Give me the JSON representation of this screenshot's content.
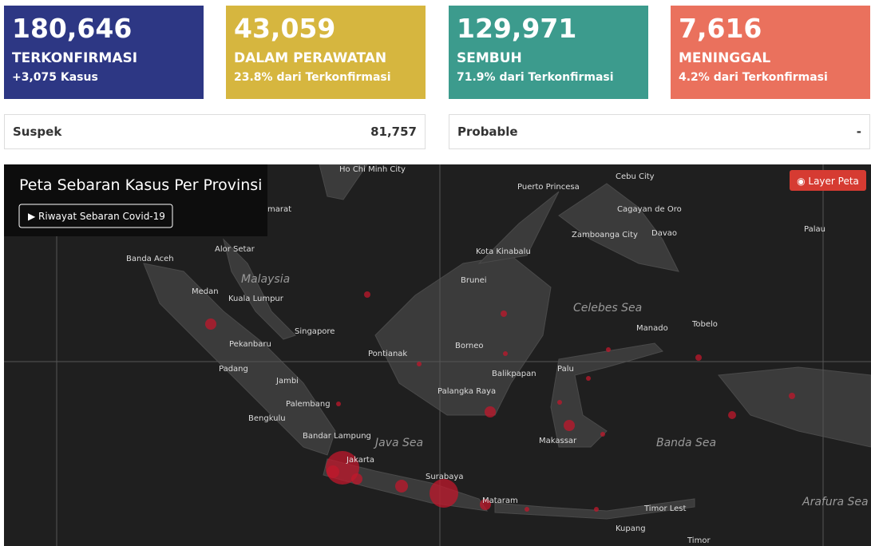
{
  "cards": [
    {
      "value": "180,646",
      "label": "TERKONFIRMASI",
      "sub": "+3,075 Kasus"
    },
    {
      "value": "43,059",
      "label": "DALAM PERAWATAN",
      "sub": "23.8% dari Terkonfirmasi"
    },
    {
      "value": "129,971",
      "label": "SEMBUH",
      "sub": "71.9% dari Terkonfirmasi"
    },
    {
      "value": "7,616",
      "label": "MENINGGAL",
      "sub": "4.2% dari Terkonfirmasi"
    }
  ],
  "rows": [
    {
      "label": "Suspek",
      "value": "81,757"
    },
    {
      "label": "Probable",
      "value": "-"
    }
  ],
  "map": {
    "title": "Peta Sebaran Kasus Per Provinsi",
    "button": "▶ Riwayat Sebaran Covid-19",
    "layer": "◉ Layer Peta",
    "labels": [
      "Ho Chi Minh City",
      "Nakhon Si Thammarat",
      "Banda Aceh",
      "Alor Setar",
      "Malaysia",
      "Medan",
      "Kuala Lumpur",
      "Singapore",
      "Pekanbaru",
      "Padang",
      "Jambi",
      "Palembang",
      "Bengkulu",
      "Bandar Lampung",
      "Jakarta",
      "Java Sea",
      "Surabaya",
      "Mataram",
      "Puerto Princesa",
      "Cebu City",
      "Cagayan de Oro",
      "Zamboanga City",
      "Davao",
      "Palau",
      "Kota Kinabalu",
      "Brunei",
      "Celebes Sea",
      "Pontianak",
      "Borneo",
      "Balikpapan",
      "Palangka Raya",
      "Palu",
      "Manado",
      "Tobelo",
      "Makassar",
      "Banda Sea",
      "Timor Lest",
      "Kupang",
      "Arafura Sea",
      "Timor"
    ]
  }
}
